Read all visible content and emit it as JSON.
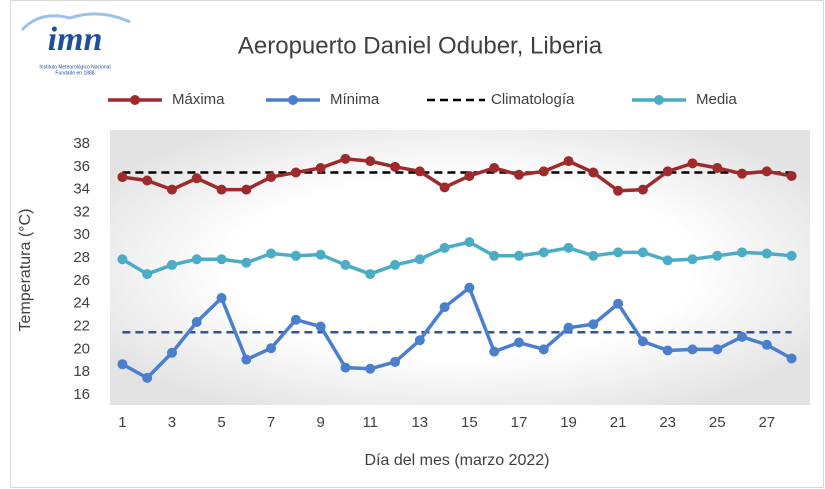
{
  "logo": {
    "name": "imn",
    "line1": "Instituto Meteorológico Nacional",
    "line2": "Fundado en 1888"
  },
  "chart_data": {
    "type": "line",
    "title": "Aeropuerto Daniel Oduber, Liberia",
    "y_label": "Temperatura (°C)",
    "x_label": "Día del mes (marzo 2022)",
    "x": [
      1,
      2,
      3,
      4,
      5,
      6,
      7,
      8,
      9,
      10,
      11,
      12,
      13,
      14,
      15,
      16,
      17,
      18,
      19,
      20,
      21,
      22,
      23,
      24,
      25,
      26,
      27,
      28
    ],
    "xlim": [
      0.5,
      28.5
    ],
    "xticks": [
      1,
      3,
      5,
      7,
      9,
      11,
      13,
      15,
      17,
      19,
      21,
      23,
      25,
      27
    ],
    "ylim": [
      16,
      38
    ],
    "yticks": [
      16,
      18,
      20,
      22,
      24,
      26,
      28,
      30,
      32,
      34,
      36,
      38
    ],
    "series": [
      {
        "name": "Máxima",
        "color": "#9e2a2b",
        "values": [
          35.1,
          34.8,
          34.0,
          35.0,
          34.0,
          34.0,
          35.1,
          35.5,
          35.9,
          36.7,
          36.5,
          36.0,
          35.6,
          34.2,
          35.2,
          35.9,
          35.3,
          35.6,
          36.5,
          35.5,
          33.9,
          34.0,
          35.6,
          36.3,
          35.9,
          35.4,
          35.6,
          35.2
        ]
      },
      {
        "name": "Mínima",
        "color": "#4a7fcb",
        "values": [
          18.7,
          17.5,
          19.7,
          22.4,
          24.5,
          19.1,
          20.1,
          22.6,
          22.0,
          18.4,
          18.3,
          18.9,
          20.8,
          23.7,
          25.4,
          19.8,
          20.6,
          20.0,
          21.9,
          22.2,
          24.0,
          20.7,
          19.9,
          20.0,
          20.0,
          21.1,
          20.4,
          19.2
        ]
      },
      {
        "name": "Media",
        "color": "#4bacc6",
        "values": [
          27.9,
          26.6,
          27.4,
          27.9,
          27.9,
          27.6,
          28.4,
          28.2,
          28.3,
          27.4,
          26.6,
          27.4,
          27.9,
          28.9,
          29.4,
          28.2,
          28.2,
          28.5,
          28.9,
          28.2,
          28.5,
          28.5,
          27.8,
          27.9,
          28.2,
          28.5,
          28.4,
          28.2
        ]
      }
    ],
    "reference_lines": [
      {
        "name": "Climatología",
        "value": 35.5,
        "color": "#000000"
      },
      {
        "value": 21.5,
        "color": "#2f5597"
      }
    ]
  }
}
